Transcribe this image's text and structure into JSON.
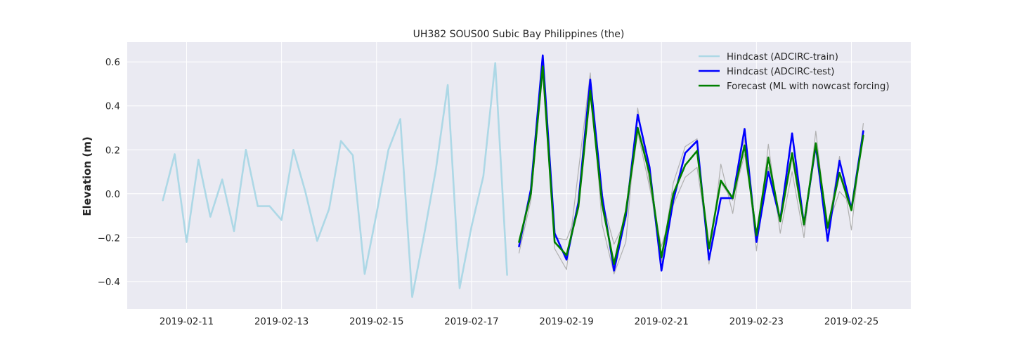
{
  "chart_data": {
    "type": "line",
    "title": "UH382 SOUS00 Subic Bay Philippines (the)",
    "xlabel": "",
    "ylabel": "Elevation (m)",
    "xlim": [
      "2019-02-09T18:00",
      "2019-02-26T06:00"
    ],
    "ylim": [
      -0.525,
      0.69
    ],
    "xticks": [
      "2019-02-11",
      "2019-02-13",
      "2019-02-15",
      "2019-02-17",
      "2019-02-19",
      "2019-02-21",
      "2019-02-23",
      "2019-02-25"
    ],
    "yticks": [
      "0.6",
      "0.4",
      "0.2",
      "0.0",
      "−0.2",
      "−0.4"
    ],
    "ytick_values": [
      0.6,
      0.4,
      0.2,
      0.0,
      -0.2,
      -0.4
    ],
    "grid": true,
    "legend_position": "top-right",
    "series": [
      {
        "name": "Hindcast (ADCIRC-train)",
        "color": "#add8e6",
        "in_legend": true,
        "x": [
          "2019-02-10T12:00",
          "2019-02-10T18:00",
          "2019-02-11T00:00",
          "2019-02-11T06:00",
          "2019-02-11T12:00",
          "2019-02-11T18:00",
          "2019-02-12T00:00",
          "2019-02-12T06:00",
          "2019-02-12T12:00",
          "2019-02-12T18:00",
          "2019-02-13T00:00",
          "2019-02-13T06:00",
          "2019-02-13T12:00",
          "2019-02-13T18:00",
          "2019-02-14T00:00",
          "2019-02-14T06:00",
          "2019-02-14T12:00",
          "2019-02-14T18:00",
          "2019-02-15T00:00",
          "2019-02-15T06:00",
          "2019-02-15T12:00",
          "2019-02-15T18:00",
          "2019-02-16T00:00",
          "2019-02-16T06:00",
          "2019-02-16T12:00",
          "2019-02-16T18:00",
          "2019-02-17T00:00",
          "2019-02-17T06:00",
          "2019-02-17T12:00",
          "2019-02-17T18:00"
        ],
        "y": [
          -0.03,
          0.18,
          -0.22,
          0.155,
          -0.105,
          0.065,
          -0.17,
          0.2,
          -0.057,
          -0.057,
          -0.12,
          0.2,
          0.01,
          -0.215,
          -0.07,
          0.24,
          0.175,
          -0.365,
          -0.09,
          0.2,
          0.34,
          -0.47,
          -0.19,
          0.11,
          0.495,
          -0.43,
          -0.15,
          0.08,
          0.595,
          -0.37
        ]
      },
      {
        "name": "",
        "color": "#b0b0b0",
        "in_legend": false,
        "x": [
          "2019-02-18T00:00",
          "2019-02-18T06:00",
          "2019-02-18T12:00",
          "2019-02-18T18:00",
          "2019-02-19T00:00",
          "2019-02-19T12:00",
          "2019-02-19T18:00",
          "2019-02-20T00:00",
          "2019-02-20T06:00",
          "2019-02-20T12:00",
          "2019-02-20T18:00",
          "2019-02-21T00:00",
          "2019-02-21T06:00",
          "2019-02-21T12:00",
          "2019-02-21T18:00",
          "2019-02-22T00:00",
          "2019-02-22T06:00",
          "2019-02-22T12:00",
          "2019-02-22T18:00",
          "2019-02-23T00:00",
          "2019-02-23T06:00",
          "2019-02-23T12:00",
          "2019-02-23T18:00",
          "2019-02-24T00:00",
          "2019-02-24T06:00",
          "2019-02-24T12:00",
          "2019-02-24T18:00",
          "2019-02-25T00:00",
          "2019-02-25T06:00"
        ],
        "y": [
          -0.27,
          -0.03,
          0.61,
          -0.25,
          -0.345,
          0.55,
          -0.14,
          -0.365,
          -0.22,
          0.39,
          0.05,
          -0.31,
          0.05,
          0.215,
          0.25,
          -0.32,
          0.135,
          -0.09,
          0.25,
          -0.26,
          0.225,
          -0.18,
          0.1,
          -0.2,
          0.285,
          -0.17,
          0.17,
          -0.165,
          0.32
        ]
      },
      {
        "name": "",
        "color": "#b0b0b0",
        "in_legend": false,
        "x": [
          "2019-02-18T06:00",
          "2019-02-18T12:00",
          "2019-02-18T18:00",
          "2019-02-19T00:00",
          "2019-02-19T06:00",
          "2019-02-19T12:00",
          "2019-02-19T18:00",
          "2019-02-20T00:00",
          "2019-02-20T06:00",
          "2019-02-20T12:00",
          "2019-02-20T18:00",
          "2019-02-21T00:00",
          "2019-02-21T06:00",
          "2019-02-21T12:00",
          "2019-02-21T18:00",
          "2019-02-22T00:00",
          "2019-02-22T06:00",
          "2019-02-22T12:00",
          "2019-02-22T18:00",
          "2019-02-23T00:00",
          "2019-02-23T06:00",
          "2019-02-23T12:00",
          "2019-02-23T18:00",
          "2019-02-24T00:00",
          "2019-02-24T06:00",
          "2019-02-24T12:00",
          "2019-02-24T18:00",
          "2019-02-25T00:00",
          "2019-02-25T06:00"
        ],
        "y": [
          -0.02,
          0.55,
          -0.2,
          -0.21,
          -0.07,
          0.45,
          -0.03,
          -0.23,
          -0.12,
          0.28,
          0.03,
          -0.24,
          -0.05,
          0.075,
          0.12,
          -0.25,
          0.05,
          -0.03,
          0.18,
          -0.18,
          0.12,
          -0.13,
          0.16,
          -0.15,
          0.2,
          -0.15,
          0.01,
          -0.05,
          0.26
        ]
      },
      {
        "name": "Hindcast (ADCIRC-test)",
        "color": "#0000ff",
        "in_legend": true,
        "x": [
          "2019-02-18T00:00",
          "2019-02-18T06:00",
          "2019-02-18T12:00",
          "2019-02-18T18:00",
          "2019-02-19T00:00",
          "2019-02-19T06:00",
          "2019-02-19T12:00",
          "2019-02-19T18:00",
          "2019-02-20T00:00",
          "2019-02-20T06:00",
          "2019-02-20T12:00",
          "2019-02-20T18:00",
          "2019-02-21T00:00",
          "2019-02-21T06:00",
          "2019-02-21T12:00",
          "2019-02-21T18:00",
          "2019-02-22T00:00",
          "2019-02-22T06:00",
          "2019-02-22T12:00",
          "2019-02-22T18:00",
          "2019-02-23T00:00",
          "2019-02-23T06:00",
          "2019-02-23T12:00",
          "2019-02-23T18:00",
          "2019-02-24T00:00",
          "2019-02-24T06:00",
          "2019-02-24T12:00",
          "2019-02-24T18:00",
          "2019-02-25T00:00",
          "2019-02-25T06:00"
        ],
        "y": [
          -0.24,
          0.02,
          0.63,
          -0.18,
          -0.3,
          -0.04,
          0.52,
          -0.01,
          -0.35,
          -0.1,
          0.36,
          0.12,
          -0.35,
          -0.03,
          0.185,
          0.24,
          -0.3,
          -0.02,
          -0.02,
          0.295,
          -0.22,
          0.1,
          -0.12,
          0.275,
          -0.14,
          0.22,
          -0.215,
          0.15,
          -0.07,
          0.285
        ]
      },
      {
        "name": "Forecast (ML with nowcast forcing)",
        "color": "#008000",
        "in_legend": true,
        "x": [
          "2019-02-18T00:00",
          "2019-02-18T06:00",
          "2019-02-18T12:00",
          "2019-02-18T18:00",
          "2019-02-19T00:00",
          "2019-02-19T06:00",
          "2019-02-19T12:00",
          "2019-02-19T18:00",
          "2019-02-20T00:00",
          "2019-02-20T06:00",
          "2019-02-20T12:00",
          "2019-02-20T18:00",
          "2019-02-21T00:00",
          "2019-02-21T06:00",
          "2019-02-21T12:00",
          "2019-02-21T18:00",
          "2019-02-22T00:00",
          "2019-02-22T06:00",
          "2019-02-22T12:00",
          "2019-02-22T18:00",
          "2019-02-23T00:00",
          "2019-02-23T06:00",
          "2019-02-23T12:00",
          "2019-02-23T18:00",
          "2019-02-24T00:00",
          "2019-02-24T06:00",
          "2019-02-24T12:00",
          "2019-02-24T18:00",
          "2019-02-25T00:00",
          "2019-02-25T06:00"
        ],
        "y": [
          -0.22,
          0.0,
          0.58,
          -0.22,
          -0.28,
          -0.06,
          0.47,
          -0.05,
          -0.32,
          -0.08,
          0.3,
          0.09,
          -0.29,
          0.0,
          0.13,
          0.195,
          -0.25,
          0.06,
          -0.02,
          0.22,
          -0.19,
          0.165,
          -0.125,
          0.185,
          -0.14,
          0.23,
          -0.155,
          0.095,
          -0.075,
          0.265
        ]
      }
    ]
  }
}
